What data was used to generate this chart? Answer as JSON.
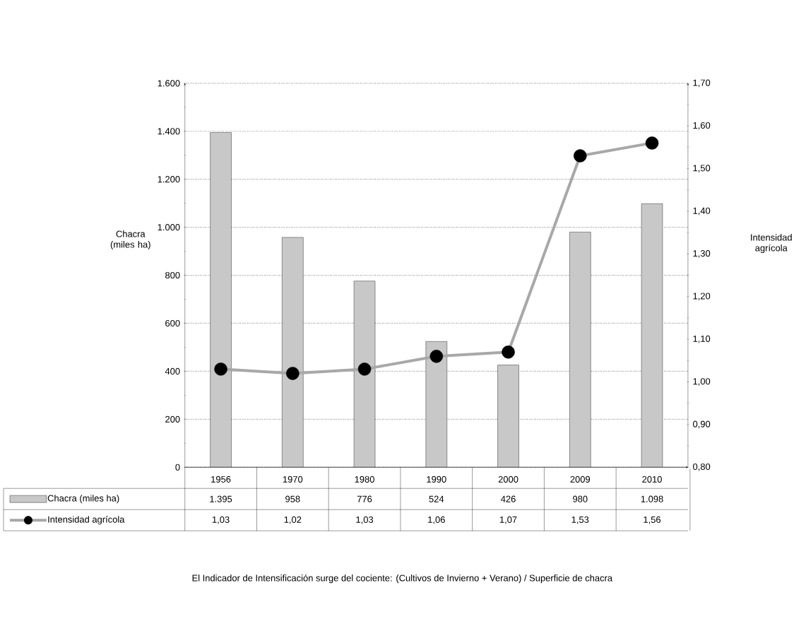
{
  "chart_data": {
    "type": "bar",
    "categories": [
      "1956",
      "1970",
      "1980",
      "1990",
      "2000",
      "2009",
      "2010"
    ],
    "series": [
      {
        "name": "Chacra (miles ha)",
        "color": "#c8c8c8",
        "values": [
          1395,
          958,
          776,
          524,
          426,
          980,
          1098
        ],
        "value_labels": [
          "1.395",
          "958",
          "776",
          "524",
          "426",
          "980",
          "1.098"
        ]
      },
      {
        "name": "Intensidad agrícola",
        "type": "line",
        "axis": "y2",
        "color": "#a8a8a8",
        "marker": "circle",
        "values": [
          1.03,
          1.02,
          1.03,
          1.06,
          1.07,
          1.53,
          1.56
        ],
        "value_labels": [
          "1,03",
          "1,02",
          "1,03",
          "1,06",
          "1,07",
          "1,53",
          "1,56"
        ]
      }
    ],
    "ylabel": "Chacra (miles ha)",
    "y2label": "Intensidad agrícola",
    "ylim": [
      0,
      1600
    ],
    "yticks": [
      0,
      200,
      400,
      600,
      800,
      {
        "value": 1000,
        "label": "1.000"
      },
      {
        "value": 1200,
        "label": "1.200"
      },
      {
        "value": 1400,
        "label": "1.400"
      },
      {
        "value": 1600,
        "label": "1.600"
      }
    ],
    "y2lim": [
      0.8,
      1.7
    ],
    "y2ticks": [
      {
        "value": 0.8,
        "label": "0,80"
      },
      {
        "value": 0.9,
        "label": "0,90"
      },
      {
        "value": 1.0,
        "label": "1,00"
      },
      {
        "value": 1.1,
        "label": "1,10"
      },
      {
        "value": 1.2,
        "label": "1,20"
      },
      {
        "value": 1.3,
        "label": "1,30"
      },
      {
        "value": 1.4,
        "label": "1,40"
      },
      {
        "value": 1.5,
        "label": "1,50"
      },
      {
        "value": 1.6,
        "label": "1,60"
      },
      {
        "value": 1.7,
        "label": "1,70"
      }
    ],
    "grid": "y",
    "legend": "bottom",
    "annotations": [
      "El Indicador de Intensificación surge del cociente: (Cultivos de Invierno + Verano) / Superficie de chacra"
    ]
  }
}
